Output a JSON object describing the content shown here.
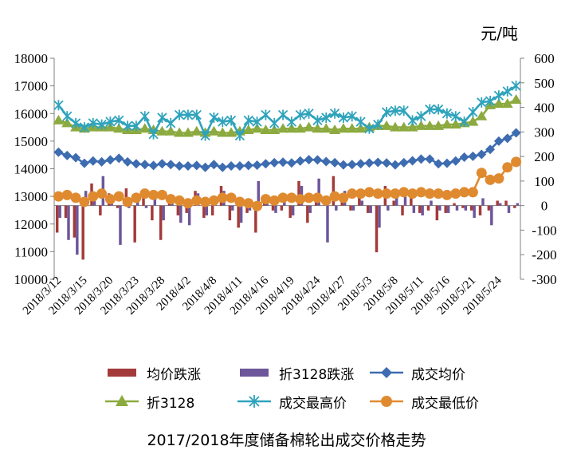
{
  "chart_title": "2017/2018年度储备棉轮出成交价格走势",
  "colors": {
    "bar_avg": "#A23B3A",
    "bar_zhe": "#6D569A",
    "line_avg": "#3D6CB0",
    "line_zhe": "#8CAA3F",
    "line_high": "#2FA3BC",
    "line_low": "#E08A30"
  },
  "chart_data": {
    "type": "line",
    "unit_label": "元/吨",
    "left_axis": {
      "min": 10000,
      "max": 18000,
      "ticks": [
        "10000",
        "11000",
        "12000",
        "13000",
        "14000",
        "15000",
        "16000",
        "17000",
        "18000"
      ]
    },
    "right_axis": {
      "min": -300,
      "max": 600,
      "ticks": [
        "-300",
        "-200",
        "-100",
        "0",
        "100",
        "200",
        "300",
        "400",
        "500",
        "600"
      ]
    },
    "x_labels": [
      "2018/3/12",
      "2018/3/15",
      "2018/3/20",
      "2018/3/23",
      "2018/3/28",
      "2018/4/2",
      "2018/4/8",
      "2018/4/11",
      "2018/4/16",
      "2018/4/19",
      "2018/4/24",
      "2018/4/27",
      "2018/5/3",
      "2018/5/8",
      "2018/5/11",
      "2018/5/16",
      "2018/5/21",
      "2018/5/24"
    ],
    "n_points": 54,
    "series": [
      {
        "name": "均价跌涨",
        "axis": "right",
        "kind": "bar",
        "color_key": "bar_avg",
        "values": [
          -110,
          -50,
          -130,
          -220,
          90,
          -40,
          50,
          -10,
          70,
          -150,
          30,
          -60,
          -140,
          40,
          -40,
          -30,
          60,
          -50,
          -40,
          80,
          -60,
          -90,
          -30,
          -110,
          30,
          -20,
          -20,
          -50,
          100,
          -70,
          30,
          30,
          120,
          40,
          -20,
          60,
          -30,
          -190,
          80,
          20,
          -40,
          30,
          -30,
          -20,
          -60,
          -30,
          10,
          -10,
          -20,
          -40,
          -20,
          20,
          20,
          -10
        ]
      },
      {
        "name": "折3128跌涨",
        "axis": "right",
        "kind": "bar",
        "color_key": "bar_zhe",
        "values": [
          -50,
          -140,
          -200,
          60,
          30,
          120,
          30,
          -160,
          -10,
          40,
          -10,
          30,
          -60,
          10,
          -70,
          -80,
          50,
          -40,
          10,
          60,
          -20,
          -70,
          -20,
          100,
          40,
          -30,
          40,
          -40,
          80,
          -30,
          110,
          -150,
          -20,
          60,
          -20,
          20,
          -30,
          -90,
          -20,
          50,
          40,
          -30,
          -40,
          20,
          -20,
          -30,
          -20,
          -20,
          -50,
          30,
          -80,
          10,
          -30,
          10
        ]
      },
      {
        "name": "成交均价",
        "axis": "left",
        "kind": "line",
        "marker": "diamond",
        "color_key": "line_avg",
        "values": [
          14600,
          14480,
          14400,
          14200,
          14280,
          14250,
          14320,
          14380,
          14250,
          14180,
          14150,
          14120,
          14180,
          14150,
          14100,
          14100,
          14120,
          14050,
          14150,
          14050,
          14100,
          14100,
          14120,
          14130,
          14180,
          14220,
          14240,
          14210,
          14280,
          14330,
          14320,
          14260,
          14220,
          14140,
          14150,
          14180,
          14210,
          14230,
          14210,
          14140,
          14220,
          14290,
          14350,
          14350,
          14180,
          14200,
          14280,
          14420,
          14450,
          14520,
          14700,
          15000,
          15100,
          15300
        ]
      },
      {
        "name": "折3128",
        "axis": "left",
        "kind": "line",
        "marker": "triangle",
        "color_key": "line_zhe",
        "values": [
          15750,
          15650,
          15500,
          15450,
          15500,
          15500,
          15500,
          15450,
          15400,
          15400,
          15450,
          15400,
          15350,
          15350,
          15300,
          15300,
          15350,
          15300,
          15350,
          15300,
          15300,
          15350,
          15400,
          15450,
          15400,
          15400,
          15450,
          15450,
          15450,
          15500,
          15450,
          15450,
          15400,
          15450,
          15450,
          15450,
          15500,
          15550,
          15550,
          15500,
          15500,
          15500,
          15550,
          15550,
          15550,
          15600,
          15600,
          15650,
          15700,
          15900,
          16300,
          16350,
          16350,
          16500
        ]
      },
      {
        "name": "成交最高价",
        "axis": "left",
        "kind": "line",
        "marker": "star",
        "color_key": "line_high",
        "values": [
          16300,
          15900,
          15650,
          15500,
          15650,
          15600,
          15700,
          15750,
          15550,
          15550,
          15900,
          15250,
          15850,
          15650,
          15950,
          15950,
          15950,
          15200,
          15850,
          15700,
          15750,
          15200,
          15750,
          15700,
          15950,
          15650,
          15950,
          15700,
          15950,
          16000,
          15750,
          15850,
          16000,
          15850,
          15900,
          15700,
          15450,
          15600,
          16050,
          16100,
          16100,
          15750,
          15900,
          16150,
          16150,
          16000,
          15900,
          15700,
          16050,
          16400,
          16450,
          16650,
          16800,
          17000
        ]
      },
      {
        "name": "成交最低价",
        "axis": "left",
        "kind": "line",
        "marker": "circle",
        "color_key": "line_low",
        "values": [
          13000,
          13050,
          12950,
          12800,
          13000,
          13100,
          12900,
          13000,
          12800,
          12950,
          13100,
          13050,
          13050,
          12900,
          12850,
          12750,
          12850,
          12800,
          12850,
          12950,
          12950,
          12800,
          12750,
          12650,
          12900,
          12850,
          12950,
          12950,
          12900,
          12950,
          12950,
          12850,
          13000,
          12950,
          13100,
          13100,
          13150,
          13100,
          13100,
          13100,
          13150,
          13100,
          13150,
          13100,
          13100,
          13050,
          13100,
          13150,
          13150,
          13850,
          13600,
          13650,
          14050,
          14250
        ]
      }
    ],
    "legend": [
      {
        "label": "均价跌涨",
        "color_key": "bar_avg",
        "kind": "bar"
      },
      {
        "label": "折3128跌涨",
        "color_key": "bar_zhe",
        "kind": "bar"
      },
      {
        "label": "成交均价",
        "color_key": "line_avg",
        "kind": "diamond"
      },
      {
        "label": "折3128",
        "color_key": "line_zhe",
        "kind": "triangle"
      },
      {
        "label": "成交最高价",
        "color_key": "line_high",
        "kind": "star"
      },
      {
        "label": "成交最低价",
        "color_key": "line_low",
        "kind": "circle"
      }
    ],
    "grid": false,
    "legend_position": "bottom"
  }
}
